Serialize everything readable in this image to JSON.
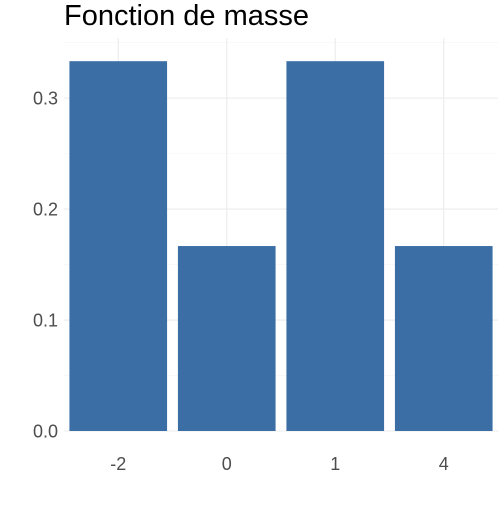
{
  "chart_data": {
    "type": "bar",
    "title": "Fonction de masse",
    "xlabel": "",
    "ylabel": "",
    "categories": [
      "-2",
      "0",
      "1",
      "4"
    ],
    "values": [
      0.3333,
      0.1667,
      0.3333,
      0.1667
    ],
    "ylim": [
      0,
      0.34
    ],
    "yticks": [
      0.0,
      0.1,
      0.2,
      0.3
    ],
    "ytick_labels": [
      "0.0",
      "0.1",
      "0.2",
      "0.3"
    ],
    "grid": true,
    "legend": "none",
    "colors": {
      "bar": "#3A6EA5",
      "grid_major": "#EBEBEB",
      "grid_minor": "#F4F4F4",
      "tick_label": "#4D4D4D"
    }
  }
}
